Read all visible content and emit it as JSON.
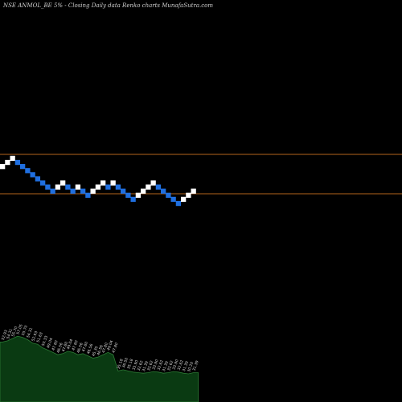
{
  "header": {
    "title": "NSE ANMOL_BE 5% -  Closing Daily data  Renko  charts MunafaSutra.com"
  },
  "colors": {
    "background": "#000000",
    "up_brick": "#ffffff",
    "down_brick": "#1f6fe0",
    "level_line": "#b5651d",
    "volume_fill": "#0a3a12",
    "volume_line": "#2b7a34"
  },
  "chart_data": {
    "type": "renko",
    "box_size_percent": 5,
    "reference_levels": [
      "upper",
      "lower"
    ],
    "bricks": [
      {
        "dir": "up",
        "level": 0
      },
      {
        "dir": "up",
        "level": 1
      },
      {
        "dir": "up",
        "level": 2
      },
      {
        "dir": "down",
        "level": 1
      },
      {
        "dir": "down",
        "level": 0
      },
      {
        "dir": "down",
        "level": -1
      },
      {
        "dir": "down",
        "level": -2
      },
      {
        "dir": "down",
        "level": -3
      },
      {
        "dir": "down",
        "level": -4
      },
      {
        "dir": "down",
        "level": -5
      },
      {
        "dir": "down",
        "level": -6
      },
      {
        "dir": "up",
        "level": -5
      },
      {
        "dir": "up",
        "level": -4
      },
      {
        "dir": "down",
        "level": -5
      },
      {
        "dir": "down",
        "level": -6
      },
      {
        "dir": "up",
        "level": -5
      },
      {
        "dir": "down",
        "level": -6
      },
      {
        "dir": "down",
        "level": -7
      },
      {
        "dir": "up",
        "level": -6
      },
      {
        "dir": "up",
        "level": -5
      },
      {
        "dir": "up",
        "level": -4
      },
      {
        "dir": "down",
        "level": -5
      },
      {
        "dir": "up",
        "level": -4
      },
      {
        "dir": "down",
        "level": -5
      },
      {
        "dir": "down",
        "level": -6
      },
      {
        "dir": "down",
        "level": -7
      },
      {
        "dir": "down",
        "level": -8
      },
      {
        "dir": "up",
        "level": -7
      },
      {
        "dir": "up",
        "level": -6
      },
      {
        "dir": "up",
        "level": -5
      },
      {
        "dir": "up",
        "level": -4
      },
      {
        "dir": "down",
        "level": -5
      },
      {
        "dir": "down",
        "level": -6
      },
      {
        "dir": "down",
        "level": -7
      },
      {
        "dir": "down",
        "level": -8
      },
      {
        "dir": "down",
        "level": -9
      },
      {
        "dir": "up",
        "level": -8
      },
      {
        "dir": "up",
        "level": -7
      },
      {
        "dir": "up",
        "level": -6
      }
    ],
    "volume_labels": [
      "52.93",
      "54.31",
      "55.70",
      "57.05",
      "55.70",
      "54.31",
      "52.93",
      "51.63",
      "50.33",
      "49.04",
      "47.80",
      "46.56",
      "47.80",
      "49.04",
      "47.80",
      "46.56",
      "47.80",
      "46.56",
      "45.35",
      "46.56",
      "47.80",
      "49.04",
      "47.80",
      "35.18",
      "36.50",
      "35.18",
      "33.90",
      "32.62",
      "31.39",
      "32.62",
      "33.90",
      "32.62",
      "31.39",
      "32.62",
      "33.90",
      "32.62",
      "31.39",
      "30.20",
      "31.39"
    ],
    "volume_values": [
      62,
      64,
      68,
      72,
      70,
      66,
      60,
      58,
      52,
      48,
      44,
      40,
      42,
      46,
      44,
      40,
      42,
      38,
      34,
      36,
      40,
      44,
      40,
      12,
      14,
      12,
      10,
      9,
      8,
      9,
      11,
      10,
      8,
      9,
      11,
      10,
      8,
      7,
      9
    ]
  }
}
